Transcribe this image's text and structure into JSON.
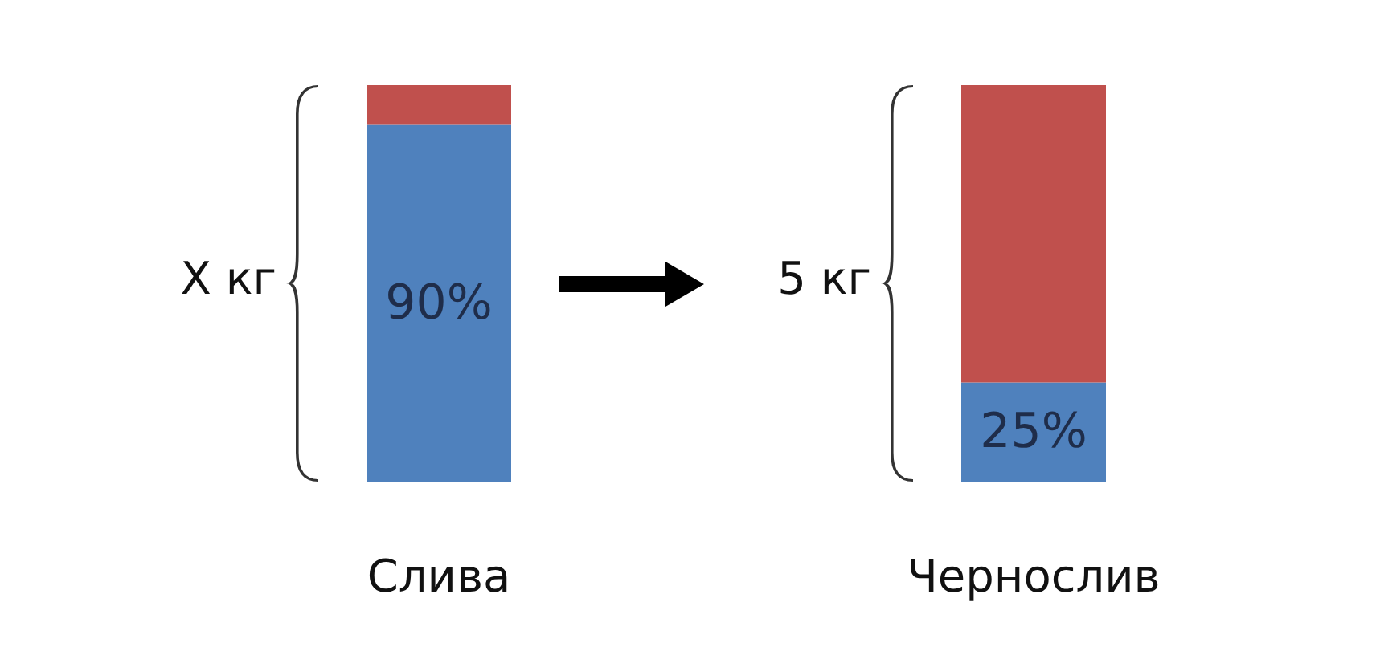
{
  "chart_data": {
    "type": "bar",
    "stacked": true,
    "categories": [
      "Слива",
      "Чернослив"
    ],
    "series": [
      {
        "color": "#4f81bd",
        "values": [
          90,
          25
        ],
        "value_labels": [
          "90%",
          "25%"
        ]
      },
      {
        "color": "#c0504d",
        "values": [
          10,
          75
        ]
      }
    ],
    "ylim": [
      0,
      100
    ],
    "tick_labels": "x",
    "grid": false,
    "annotations": [
      "X кг",
      "5 кг"
    ]
  }
}
